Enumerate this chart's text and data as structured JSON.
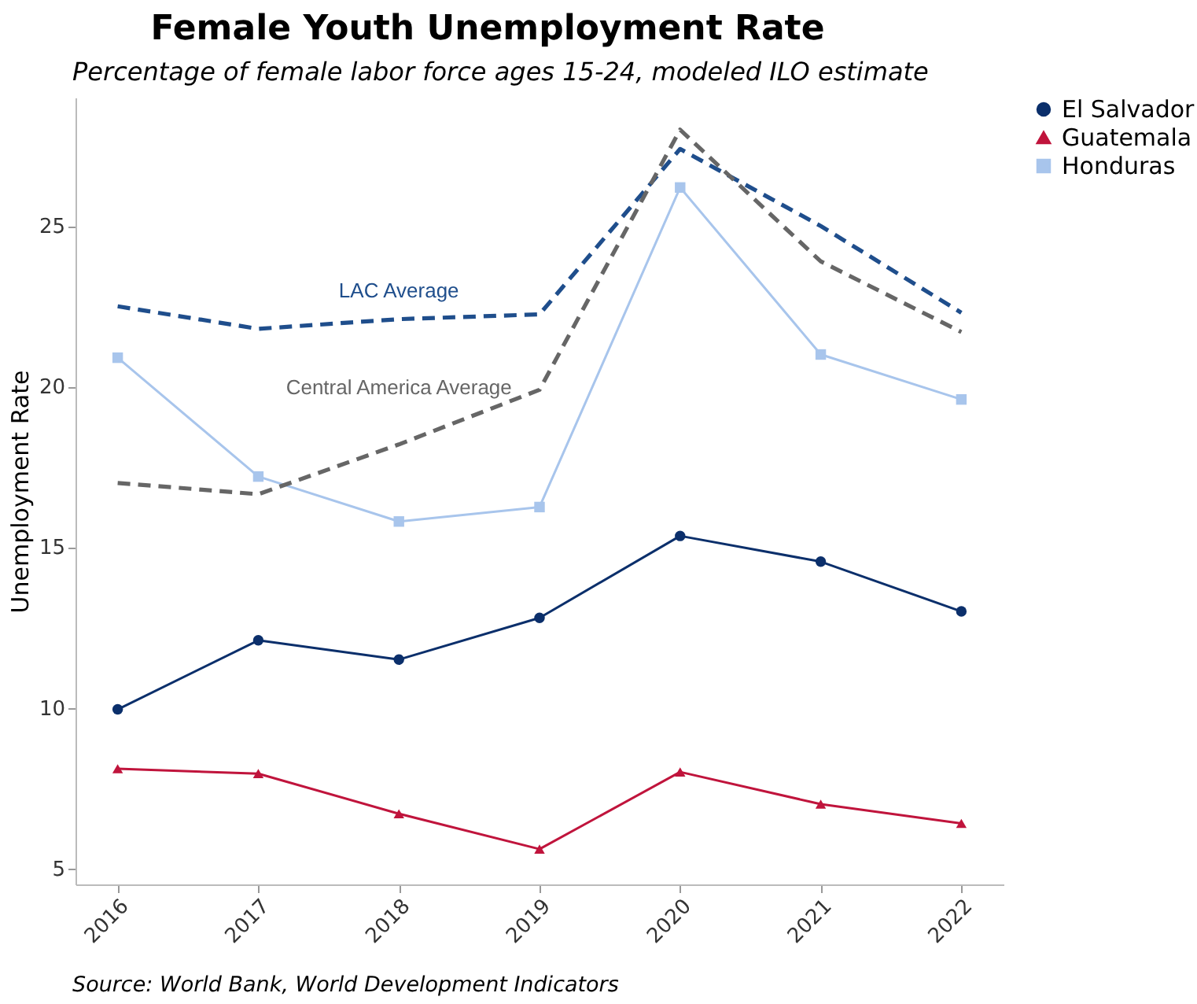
{
  "chart_data": {
    "type": "line",
    "title": "Female Youth Unemployment Rate",
    "subtitle": "Percentage of female labor force ages 15-24, modeled ILO estimate",
    "ylabel": "Unemployment Rate",
    "annotations": [
      "Source: World Bank, World Development Indicators"
    ],
    "categories": [
      "2016",
      "2017",
      "2018",
      "2019",
      "2020",
      "2021",
      "2022"
    ],
    "series": [
      {
        "name": "El Salvador",
        "color": "#0b2f6b",
        "marker": "circle",
        "line_style": "solid",
        "values": [
          9.95,
          12.1,
          11.5,
          12.8,
          15.35,
          14.55,
          13.0
        ]
      },
      {
        "name": "Guatemala",
        "color": "#c0143c",
        "marker": "triangle",
        "line_style": "solid",
        "values": [
          8.1,
          7.95,
          6.7,
          5.6,
          8.0,
          7.0,
          6.4
        ]
      },
      {
        "name": "Honduras",
        "color": "#a8c5ec",
        "marker": "square",
        "line_style": "solid",
        "values": [
          20.9,
          17.2,
          15.8,
          16.25,
          26.2,
          21.0,
          19.6
        ]
      },
      {
        "name": "LAC Average",
        "color": "#1f4e8c",
        "marker": "none",
        "line_style": "dashed",
        "values": [
          22.5,
          21.8,
          22.1,
          22.25,
          27.4,
          25.0,
          22.3
        ]
      },
      {
        "name": "Central America Average",
        "color": "#666666",
        "marker": "none",
        "line_style": "dashed",
        "values": [
          17.0,
          16.65,
          18.2,
          19.9,
          28.0,
          23.9,
          21.7
        ]
      }
    ],
    "ylim": [
      4.5,
      29
    ],
    "yticks": [
      5,
      10,
      15,
      20,
      25
    ],
    "grid": false,
    "legend": "right"
  }
}
